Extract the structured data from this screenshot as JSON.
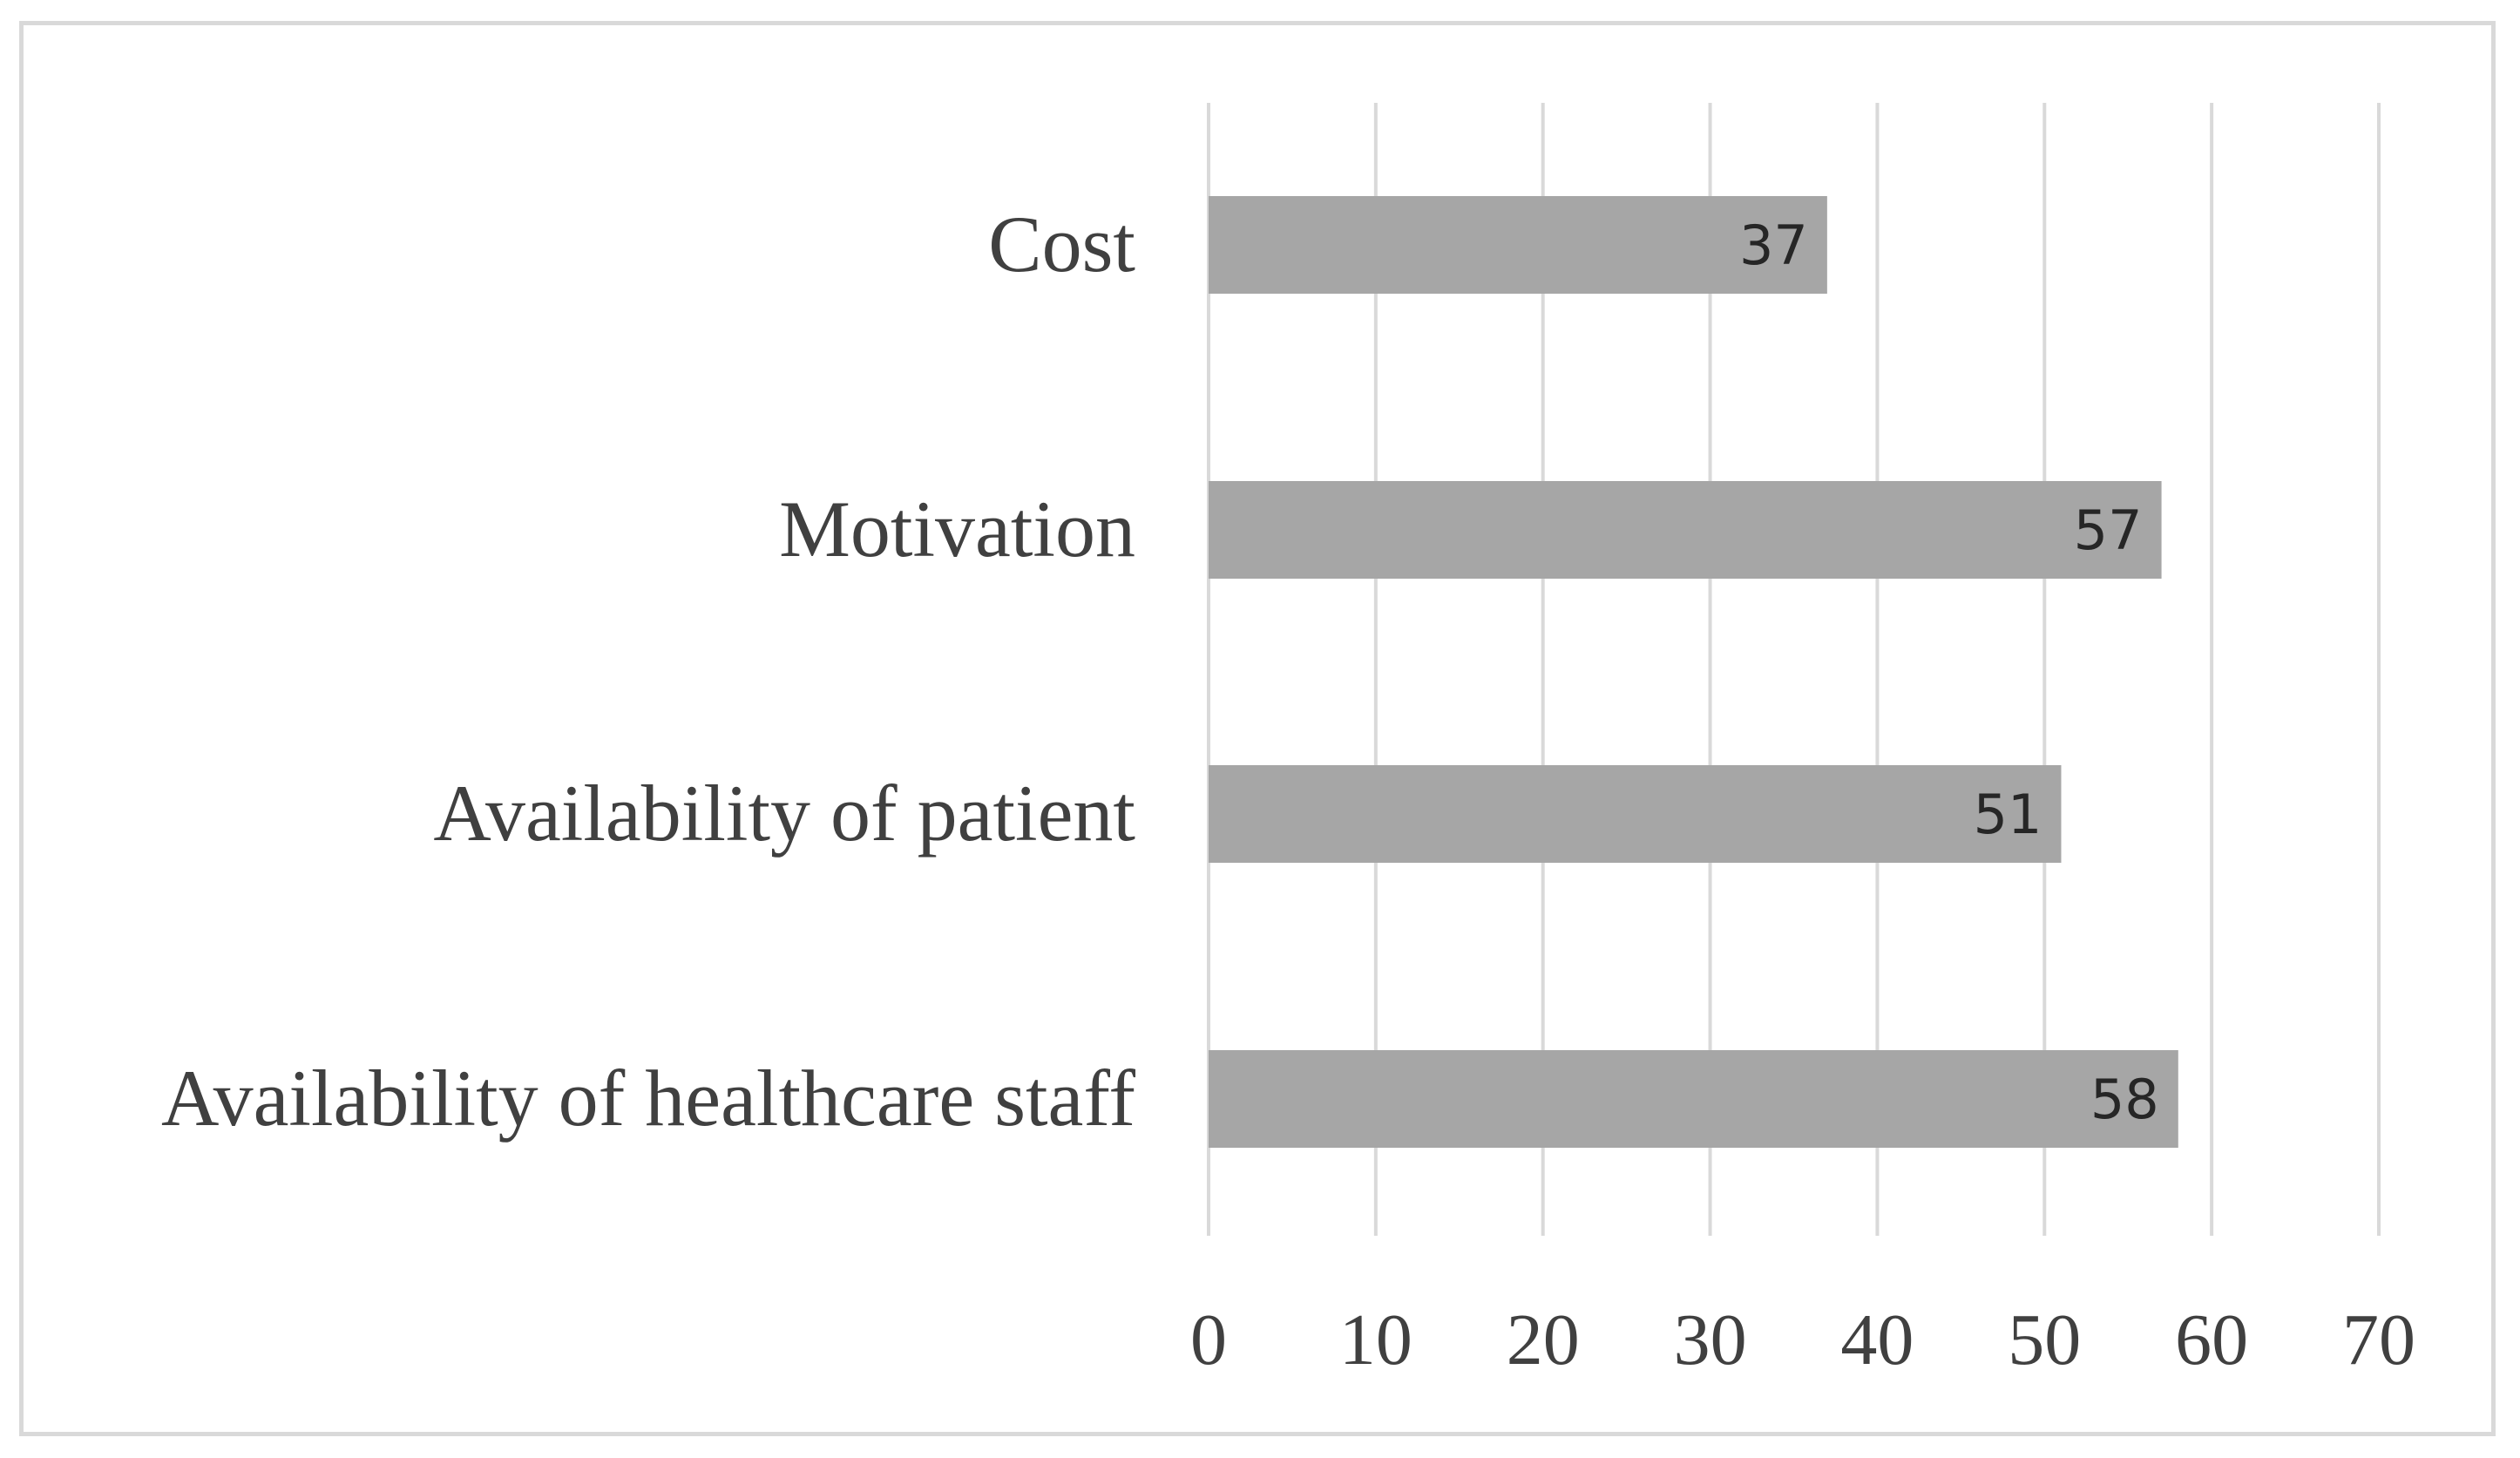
{
  "chart_data": {
    "type": "bar",
    "orientation": "horizontal",
    "categories": [
      "Cost",
      "Motivation",
      "Availability of patient",
      "Availability of healthcare staff"
    ],
    "values": [
      37,
      57,
      51,
      58
    ],
    "xticks": [
      "0",
      "10",
      "20",
      "30",
      "40",
      "50",
      "60",
      "70"
    ],
    "xlim": [
      0,
      70
    ],
    "grid": "vertical",
    "legend": "none",
    "data_labels": true,
    "colors": {
      "bar": "#a6a6a6",
      "grid": "#d9d9d9",
      "frame": "#d9d9d9",
      "text": "#404040"
    }
  }
}
